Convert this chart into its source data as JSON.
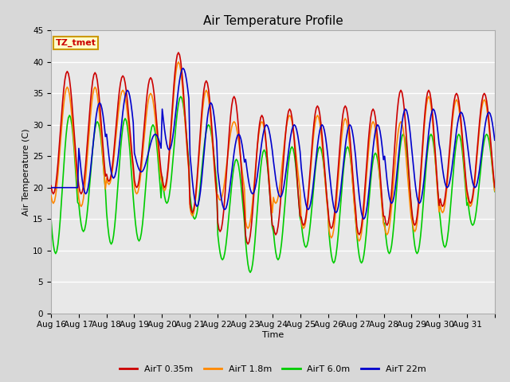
{
  "title": "Air Temperature Profile",
  "xlabel": "Time",
  "ylabel": "Air Temperature (C)",
  "annotation_text": "TZ_tmet",
  "annotation_color": "#cc0000",
  "annotation_bg": "#ffffcc",
  "annotation_border": "#cc9900",
  "ylim": [
    0,
    45
  ],
  "yticks": [
    0,
    5,
    10,
    15,
    20,
    25,
    30,
    35,
    40,
    45
  ],
  "x_labels": [
    "Aug 16",
    "Aug 17",
    "Aug 18",
    "Aug 19",
    "Aug 20",
    "Aug 21",
    "Aug 22",
    "Aug 23",
    "Aug 24",
    "Aug 25",
    "Aug 26",
    "Aug 27",
    "Aug 28",
    "Aug 29",
    "Aug 30",
    "Aug 31",
    ""
  ],
  "series_colors": [
    "#cc0000",
    "#ff8800",
    "#00cc00",
    "#0000cc"
  ],
  "series_labels": [
    "AirT 0.35m",
    "AirT 1.8m",
    "AirT 6.0m",
    "AirT 22m"
  ],
  "series_linewidth": 1.2,
  "fig_bg_color": "#d8d8d8",
  "plot_bg_color": "#e8e8e8",
  "grid_color": "#ffffff",
  "title_fontsize": 11,
  "label_fontsize": 8,
  "tick_fontsize": 7.5
}
